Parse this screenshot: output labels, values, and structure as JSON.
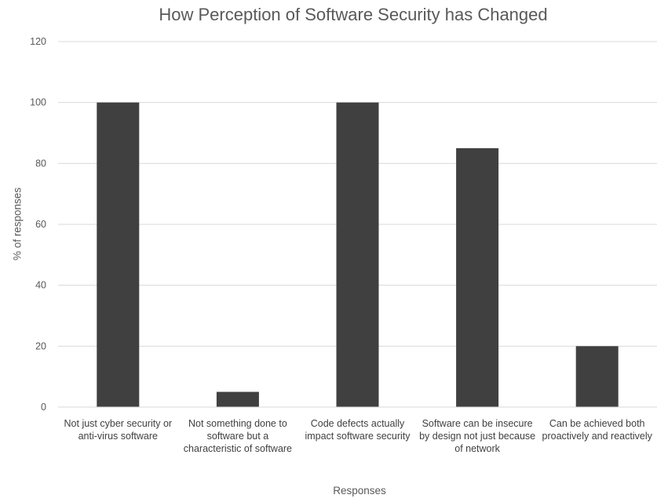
{
  "chart_data": {
    "type": "bar",
    "title": "How Perception of Software Security has Changed",
    "xlabel": "Responses",
    "ylabel": "% of responses",
    "categories": [
      "Not just cyber security or anti-virus software",
      "Not something done to software but a characteristic of software",
      "Code defects actually impact software security",
      "Software can be insecure by design not just because of network",
      "Can be achieved both proactively and reactively"
    ],
    "values": [
      100,
      5,
      100,
      85,
      20
    ],
    "ylim": [
      0,
      120
    ],
    "yticks": [
      "0",
      "20",
      "40",
      "60",
      "80",
      "100",
      "120"
    ],
    "grid": true,
    "bar_color": "#404040"
  }
}
